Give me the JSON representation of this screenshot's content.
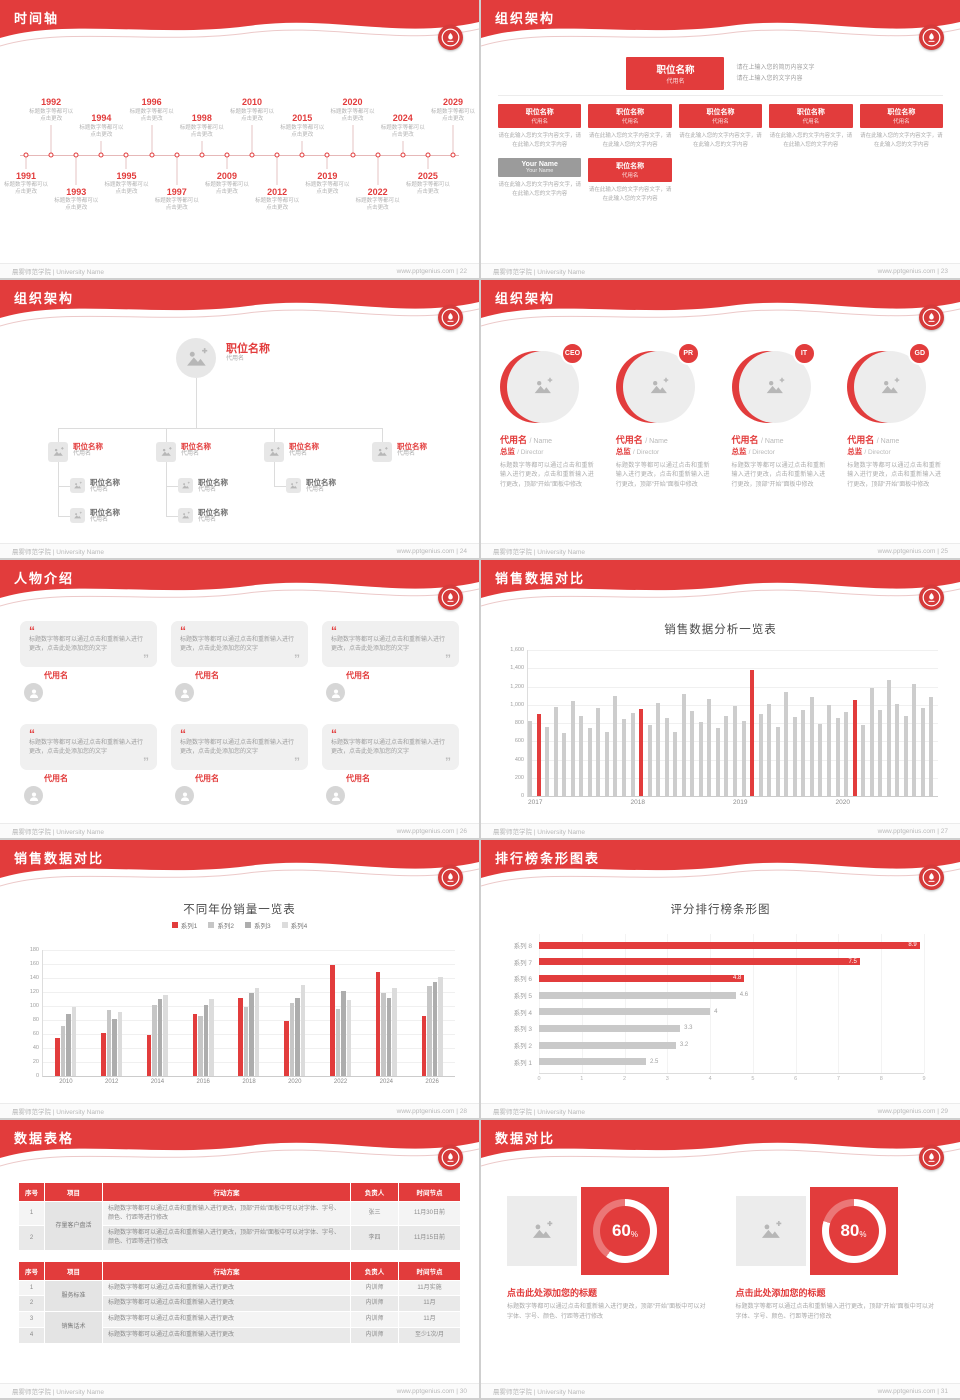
{
  "theme": {
    "red": "#e23c3c",
    "bar_gray": "#cdcdcd",
    "page_bg": "#cfcfcf"
  },
  "footer": {
    "left": "晨雾师范学院 | University Name",
    "site": "www.pptgenius.com",
    "separator": "|"
  },
  "slides": [
    {
      "id": "timeline",
      "title": "时间轴",
      "page": "22",
      "caption": "标题数字等都可以点击更改",
      "years": [
        "1991",
        "1992",
        "1993",
        "1994",
        "1995",
        "1996",
        "1997",
        "1998",
        "2009",
        "2010",
        "2012",
        "2015",
        "2019",
        "2020",
        "2022",
        "2024",
        "2025",
        "2029"
      ]
    },
    {
      "id": "org-boxes",
      "title": "组织架构",
      "page": "23",
      "top_box": {
        "title": "职位名称",
        "sub": "代用名"
      },
      "top_note": [
        "请在上输入您的简历内容文字",
        "请在上输入您的文字内容"
      ],
      "box_note": "请在此输入您的文字内容文字，请在此输入您的文字内容",
      "row1": [
        {
          "title": "职位名称",
          "sub": "代用名"
        },
        {
          "title": "职位名称",
          "sub": "代用名"
        },
        {
          "title": "职位名称",
          "sub": "代用名"
        },
        {
          "title": "职位名称",
          "sub": "代用名"
        },
        {
          "title": "职位名称",
          "sub": "代用名"
        }
      ],
      "row2": [
        {
          "title": "Your Name",
          "sub": "Your Name",
          "gray": true
        },
        {
          "title": "职位名称",
          "sub": "代用名"
        }
      ]
    },
    {
      "id": "org-tree",
      "title": "组织架构",
      "page": "24",
      "root": {
        "title": "职位名称",
        "sub": "代用名"
      },
      "children": [
        {
          "title": "职位名称",
          "sub": "代用名"
        },
        {
          "title": "职位名称",
          "sub": "代用名"
        },
        {
          "title": "职位名称",
          "sub": "代用名"
        },
        {
          "title": "职位名称",
          "sub": "代用名"
        }
      ],
      "sub_columns": [
        [
          {
            "title": "职位名称",
            "sub": "代用名"
          },
          {
            "title": "职位名称",
            "sub": "代用名"
          }
        ],
        [
          {
            "title": "职位名称",
            "sub": "代用名"
          },
          {
            "title": "职位名称",
            "sub": "代用名"
          }
        ],
        [
          {
            "title": "职位名称",
            "sub": "代用名"
          }
        ]
      ]
    },
    {
      "id": "org-circles",
      "title": "组织架构",
      "page": "25",
      "members": [
        {
          "badge": "CEO",
          "name": "代用名",
          "name_en": "/ Name",
          "role": "总监",
          "role_en": "/ Director",
          "desc": "标题数字等都可以通过点击和重新输入进行更改，点击和重新输入进行更改，顶部“开始”面板中修改"
        },
        {
          "badge": "PR",
          "name": "代用名",
          "name_en": "/ Name",
          "role": "总监",
          "role_en": "/ Director",
          "desc": "标题数字等都可以通过点击和重新输入进行更改，点击和重新输入进行更改，顶部“开始”面板中修改"
        },
        {
          "badge": "IT",
          "name": "代用名",
          "name_en": "/ Name",
          "role": "总监",
          "role_en": "/ Director",
          "desc": "标题数字等都可以通过点击和重新输入进行更改，点击和重新输入进行更改，顶部“开始”面板中修改"
        },
        {
          "badge": "GD",
          "name": "代用名",
          "name_en": "/ Name",
          "role": "总监",
          "role_en": "/ Director",
          "desc": "标题数字等都可以通过点击和重新输入进行更改，点击和重新输入进行更改，顶部“开始”面板中修改"
        }
      ]
    },
    {
      "id": "people",
      "title": "人物介绍",
      "page": "26",
      "cards": [
        {
          "text": "标题数字等都可以通过点击和重新输入进行更改，点击此处添加您的文字",
          "name": "代用名"
        },
        {
          "text": "标题数字等都可以通过点击和重新输入进行更改，点击此处添加您的文字",
          "name": "代用名"
        },
        {
          "text": "标题数字等都可以通过点击和重新输入进行更改，点击此处添加您的文字",
          "name": "代用名"
        },
        {
          "text": "标题数字等都可以通过点击和重新输入进行更改，点击此处添加您的文字",
          "name": "代用名"
        },
        {
          "text": "标题数字等都可以通过点击和重新输入进行更改，点击此处添加您的文字",
          "name": "代用名"
        },
        {
          "text": "标题数字等都可以通过点击和重新输入进行更改，点击此处添加您的文字",
          "name": "代用名"
        }
      ]
    },
    {
      "id": "sales-analysis",
      "title": "销售数据对比",
      "page": "27",
      "chart_ref": 0
    },
    {
      "id": "sales-by-year",
      "title": "销售数据对比",
      "page": "28",
      "chart_ref": 1
    },
    {
      "id": "ranking",
      "title": "排行榜条形图表",
      "page": "29",
      "chart_ref": 2
    },
    {
      "id": "data-table",
      "title": "数据表格",
      "page": "30",
      "table1": {
        "headers": [
          "序号",
          "项目",
          "行动方案",
          "负责人",
          "时间节点"
        ],
        "project": "存量客户盘活",
        "rows": [
          {
            "no": "1",
            "action": "标题数字等都可以通过点击和重新输入进行更改，顶部“开始”面板中可以对字体、字号、颜色、行距等进行修改",
            "owner": "张三",
            "time": "11月30日前"
          },
          {
            "no": "2",
            "action": "标题数字等都可以通过点击和重新输入进行更改，顶部“开始”面板中可以对字体、字号、颜色、行距等进行修改",
            "owner": "李四",
            "time": "11月15日前"
          }
        ]
      },
      "table2": {
        "headers": [
          "序号",
          "项目",
          "行动方案",
          "负责人",
          "时间节点"
        ],
        "groups": [
          {
            "project": "服务标准",
            "rows": [
              {
                "no": "1",
                "action": "标题数字等都可以通过点击和重新输入进行更改",
                "owner": "内训师",
                "time": "11月实施"
              },
              {
                "no": "2",
                "action": "标题数字等都可以通过点击和重新输入进行更改",
                "owner": "内训师",
                "time": "11月"
              }
            ]
          },
          {
            "project": "销售话术",
            "rows": [
              {
                "no": "3",
                "action": "标题数字等都可以通过点击和重新输入进行更改",
                "owner": "内训师",
                "time": "11月"
              },
              {
                "no": "4",
                "action": "标题数字等都可以通过点击和重新输入进行更改",
                "owner": "内训师",
                "time": "至少1次/月"
              }
            ]
          }
        ]
      }
    },
    {
      "id": "data-compare",
      "title": "数据对比",
      "page": "31",
      "panels": [
        {
          "percent": 60,
          "heading": "点击此处添加您的标题",
          "desc": "标题数字等都可以通过点击和重新输入进行更改，顶部“开始”面板中可以对字体、字号、颜色、行距等进行修改"
        },
        {
          "percent": 80,
          "heading": "点击此处添加您的标题",
          "desc": "标题数字等都可以通过点击和重新输入进行更改，顶部“开始”面板中可以对字体、字号、颜色、行距等进行修改"
        }
      ]
    }
  ],
  "chart_data": [
    {
      "type": "bar",
      "title": "销售数据分析一览表",
      "xlabel": "",
      "ylabel": "",
      "ylim": [
        0,
        1600
      ],
      "ytick_step": 200,
      "x_sections": [
        "2017",
        "2018",
        "2019",
        "2020"
      ],
      "values": [
        820,
        900,
        760,
        980,
        690,
        1040,
        880,
        750,
        960,
        700,
        1100,
        840,
        910,
        950,
        780,
        1020,
        860,
        700,
        1120,
        930,
        810,
        1060,
        740,
        880,
        990,
        820,
        1380,
        900,
        1010,
        760,
        1140,
        870,
        940,
        1080,
        790,
        1000,
        860,
        920,
        1050,
        780,
        1180,
        940,
        1270,
        1010,
        880,
        1230,
        960,
        1090
      ],
      "red_indices": [
        1,
        13,
        26,
        38
      ],
      "grid": true,
      "legend": "none"
    },
    {
      "type": "bar",
      "title": "不同年份销量一览表",
      "ylim": [
        0,
        180
      ],
      "ytick_step": 20,
      "grid": true,
      "legend": "top",
      "categories": [
        "2010",
        "2012",
        "2014",
        "2016",
        "2018",
        "2020",
        "2022",
        "2024",
        "2026"
      ],
      "series": [
        {
          "name": "系列1",
          "color": "#e23c3c",
          "values": [
            55,
            62,
            58,
            88,
            112,
            78,
            158,
            148,
            86
          ]
        },
        {
          "name": "系列2",
          "color": "#c6c6c6",
          "values": [
            72,
            95,
            102,
            86,
            98,
            104,
            96,
            118,
            128
          ]
        },
        {
          "name": "系列3",
          "color": "#adadad",
          "values": [
            88,
            82,
            110,
            102,
            118,
            112,
            122,
            112,
            135
          ]
        },
        {
          "name": "系列4",
          "color": "#dcdcdc",
          "values": [
            98,
            92,
            116,
            110,
            126,
            130,
            108,
            126,
            142
          ]
        }
      ]
    },
    {
      "type": "bar_horizontal",
      "title": "评分排行榜条形图",
      "xlim": [
        0,
        9
      ],
      "grid": true,
      "legend": "none",
      "categories": [
        "系列 8",
        "系列 7",
        "系列 6",
        "系列 5",
        "系列 4",
        "系列 3",
        "系列 2",
        "系列 1"
      ],
      "values": [
        8.9,
        7.5,
        4.8,
        4.6,
        4,
        3.3,
        3.2,
        2.5
      ],
      "red_count": 3
    }
  ]
}
